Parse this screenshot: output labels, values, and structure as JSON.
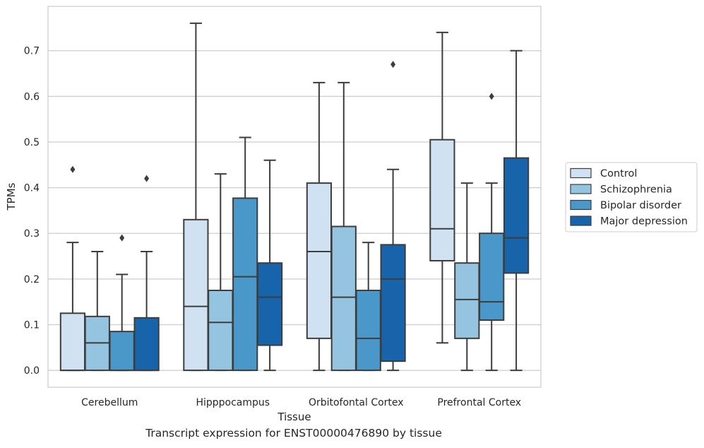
{
  "chart_data": {
    "type": "box",
    "xlabel": "Tissue",
    "ylabel": "TPMs",
    "ylim": [
      -0.037,
      0.797
    ],
    "yticks": [
      0.0,
      0.1,
      0.2,
      0.3,
      0.4,
      0.5,
      0.6,
      0.7
    ],
    "ytick_labels": [
      "0.0",
      "0.1",
      "0.2",
      "0.3",
      "0.4",
      "0.5",
      "0.6",
      "0.7"
    ],
    "grid": "horizontal",
    "legend_position": "right",
    "categories": [
      "Cerebellum",
      "Hipppocampus",
      "Orbitofontal Cortex",
      "Prefrontal Cortex"
    ],
    "series": [
      {
        "name": "Control",
        "color": "#d0e1f2",
        "boxes": [
          {
            "whislo": 0.0,
            "q1": 0.0,
            "med": 0.0,
            "q3": 0.125,
            "whishi": 0.28,
            "fliers": [
              0.44
            ]
          },
          {
            "whislo": 0.0,
            "q1": 0.0,
            "med": 0.14,
            "q3": 0.33,
            "whishi": 0.76,
            "fliers": []
          },
          {
            "whislo": 0.0,
            "q1": 0.07,
            "med": 0.26,
            "q3": 0.41,
            "whishi": 0.63,
            "fliers": []
          },
          {
            "whislo": 0.06,
            "q1": 0.24,
            "med": 0.31,
            "q3": 0.505,
            "whishi": 0.74,
            "fliers": []
          }
        ]
      },
      {
        "name": "Schizophrenia",
        "color": "#94c4df",
        "boxes": [
          {
            "whislo": 0.0,
            "q1": 0.0,
            "med": 0.06,
            "q3": 0.118,
            "whishi": 0.26,
            "fliers": []
          },
          {
            "whislo": 0.0,
            "q1": 0.0,
            "med": 0.105,
            "q3": 0.175,
            "whishi": 0.43,
            "fliers": []
          },
          {
            "whislo": 0.0,
            "q1": 0.0,
            "med": 0.16,
            "q3": 0.315,
            "whishi": 0.63,
            "fliers": []
          },
          {
            "whislo": 0.0,
            "q1": 0.07,
            "med": 0.155,
            "q3": 0.235,
            "whishi": 0.41,
            "fliers": []
          }
        ]
      },
      {
        "name": "Bipolar disorder",
        "color": "#4a98c9",
        "boxes": [
          {
            "whislo": 0.0,
            "q1": 0.0,
            "med": 0.0,
            "q3": 0.085,
            "whishi": 0.21,
            "fliers": [
              0.29
            ]
          },
          {
            "whislo": 0.0,
            "q1": 0.0,
            "med": 0.205,
            "q3": 0.377,
            "whishi": 0.51,
            "fliers": []
          },
          {
            "whislo": 0.0,
            "q1": 0.0,
            "med": 0.07,
            "q3": 0.175,
            "whishi": 0.28,
            "fliers": []
          },
          {
            "whislo": 0.0,
            "q1": 0.11,
            "med": 0.15,
            "q3": 0.3,
            "whishi": 0.41,
            "fliers": [
              0.6
            ]
          }
        ]
      },
      {
        "name": "Major depression",
        "color": "#1764ab",
        "boxes": [
          {
            "whislo": 0.0,
            "q1": 0.0,
            "med": 0.0,
            "q3": 0.115,
            "whishi": 0.26,
            "fliers": [
              0.42
            ]
          },
          {
            "whislo": 0.0,
            "q1": 0.055,
            "med": 0.16,
            "q3": 0.235,
            "whishi": 0.46,
            "fliers": []
          },
          {
            "whislo": 0.0,
            "q1": 0.02,
            "med": 0.2,
            "q3": 0.275,
            "whishi": 0.44,
            "fliers": [
              0.67
            ]
          },
          {
            "whislo": 0.0,
            "q1": 0.213,
            "med": 0.29,
            "q3": 0.465,
            "whishi": 0.7,
            "fliers": []
          }
        ]
      }
    ],
    "caption": "Transcript expression for ENST00000476890 by tissue"
  }
}
